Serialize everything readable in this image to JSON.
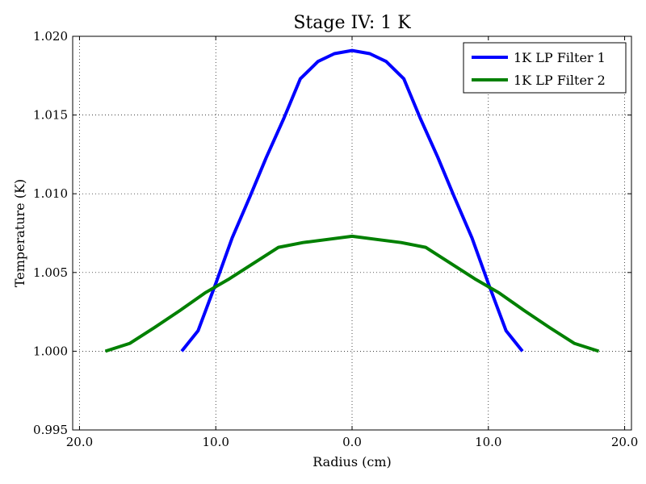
{
  "chart_data": {
    "type": "line",
    "title": "Stage IV: 1 K",
    "xlabel": "Radius (cm)",
    "ylabel": "Temperature (K)",
    "xlim": [
      -20.5,
      20.5
    ],
    "ylim": [
      0.995,
      1.02
    ],
    "x_ticks": [
      -20.0,
      -10.0,
      0.0,
      10.0,
      20.0
    ],
    "x_tick_labels": [
      "20.0",
      "10.0",
      "0.0",
      "10.0",
      "20.0"
    ],
    "y_ticks": [
      0.995,
      1.0,
      1.005,
      1.01,
      1.015,
      1.02
    ],
    "y_tick_labels": [
      "0.995",
      "1.000",
      "1.005",
      "1.010",
      "1.015",
      "1.020"
    ],
    "grid": true,
    "legend_position": "top-right",
    "series": [
      {
        "name": "1K LP Filter 1",
        "color": "#0000ff",
        "x": [
          -12.5,
          -11.3,
          -10.0,
          -8.8,
          -7.5,
          -6.3,
          -5.0,
          -3.8,
          -2.5,
          -1.3,
          0.0,
          1.3,
          2.5,
          3.8,
          5.0,
          6.3,
          7.5,
          8.8,
          10.0,
          11.3,
          12.5
        ],
        "y": [
          1.0,
          1.0013,
          1.0043,
          1.0072,
          1.0098,
          1.0123,
          1.0148,
          1.0173,
          1.0184,
          1.0189,
          1.0191,
          1.0189,
          1.0184,
          1.0173,
          1.0148,
          1.0123,
          1.0098,
          1.0072,
          1.0043,
          1.0013,
          1.0
        ]
      },
      {
        "name": "1K LP Filter 2",
        "color": "#008000",
        "x": [
          -18.1,
          -16.3,
          -14.5,
          -12.6,
          -10.8,
          -9.0,
          -7.2,
          -5.4,
          -3.6,
          -1.8,
          0.0,
          1.8,
          3.6,
          5.4,
          7.2,
          9.0,
          10.8,
          12.6,
          14.5,
          16.3,
          18.1
        ],
        "y": [
          1.0,
          1.0005,
          1.0015,
          1.0026,
          1.0037,
          1.0046,
          1.0056,
          1.0066,
          1.0069,
          1.0071,
          1.0073,
          1.0071,
          1.0069,
          1.0066,
          1.0056,
          1.0046,
          1.0037,
          1.0026,
          1.0015,
          1.0005,
          1.0
        ]
      }
    ]
  }
}
